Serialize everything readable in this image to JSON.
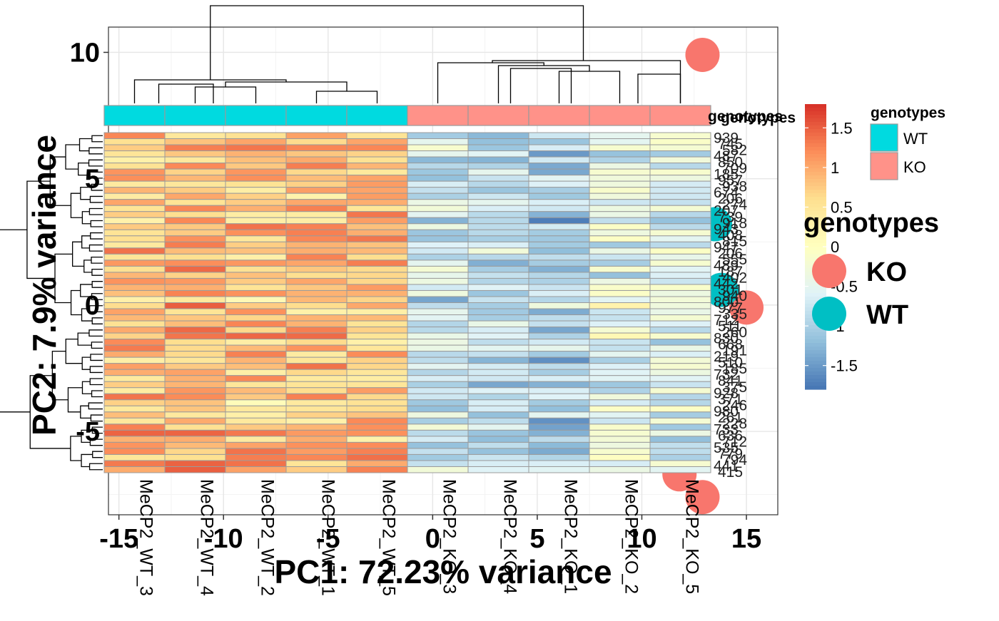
{
  "chart_data": [
    {
      "type": "scatter",
      "xlabel": "PC1: 72.23% variance",
      "ylabel": "PC2: 7.9% variance",
      "xlim": [
        -15.5,
        16.5
      ],
      "ylim": [
        -8.3,
        11.0
      ],
      "xticks": [
        -15,
        -10,
        -5,
        0,
        5,
        10,
        15
      ],
      "xtick_labels": [
        "-15",
        "-10",
        "-5",
        "0",
        "5",
        "10",
        "15"
      ],
      "yticks": [
        -5,
        0,
        5,
        10
      ],
      "ytick_labels": [
        "-5",
        "0",
        "5",
        "10"
      ],
      "grid": true,
      "legend": {
        "title": "genotypes",
        "placement": "right",
        "entries": [
          {
            "name": "KO",
            "color": "#F8766D"
          },
          {
            "name": "WT",
            "color": "#00BFC4"
          }
        ]
      },
      "series": [
        {
          "name": "KO",
          "color": "#F8766D",
          "points": [
            {
              "x": 12.9,
              "y": 9.9
            },
            {
              "x": 15.0,
              "y": -0.1
            },
            {
              "x": 11.8,
              "y": -6.7
            },
            {
              "x": 12.9,
              "y": -7.6
            }
          ]
        },
        {
          "name": "WT",
          "color": "#00BFC4",
          "points": [
            {
              "x": 13.5,
              "y": 3.2
            },
            {
              "x": 13.8,
              "y": 0.6
            }
          ]
        }
      ]
    },
    {
      "type": "heatmap",
      "columns": [
        "MeCP2_WT_3",
        "MeCP2_WT_4",
        "MeCP2_WT_2",
        "MeCP2_WT_1",
        "MeCP2_WT_5",
        "MeCP2_KO_3",
        "MeCP2_KO_4",
        "MeCP2_KO_1",
        "MeCP2_KO_2",
        "MeCP2_KO_5"
      ],
      "column_annotation": {
        "title": "genotypes",
        "label": "genotypes",
        "values": [
          "WT",
          "WT",
          "WT",
          "WT",
          "WT",
          "KO",
          "KO",
          "KO",
          "KO",
          "KO"
        ],
        "legend": [
          {
            "name": "WT",
            "color": "#00DAE0"
          },
          {
            "name": "KO",
            "color": "#FF9289"
          }
        ]
      },
      "color_scale": {
        "colors": [
          "#4575B4",
          "#91BFDB",
          "#E0F3F8",
          "#FFFFBF",
          "#FEE090",
          "#FC8D59",
          "#D73027"
        ],
        "ticks": [
          1.5,
          1,
          0.5,
          0,
          -0.5,
          -1,
          -1.5
        ],
        "tick_labels": [
          "1.5",
          "1",
          "0.5",
          "0",
          "-0.5",
          "-1",
          "-1.5"
        ]
      },
      "rows": 56,
      "wt_base": [
        0.9,
        0.95,
        0.8,
        0.85,
        0.88
      ],
      "ko_base": [
        -0.7,
        -0.9,
        -1.0,
        -0.5,
        -0.55
      ],
      "row_dendrogram": true,
      "col_dendrogram": true
    }
  ]
}
